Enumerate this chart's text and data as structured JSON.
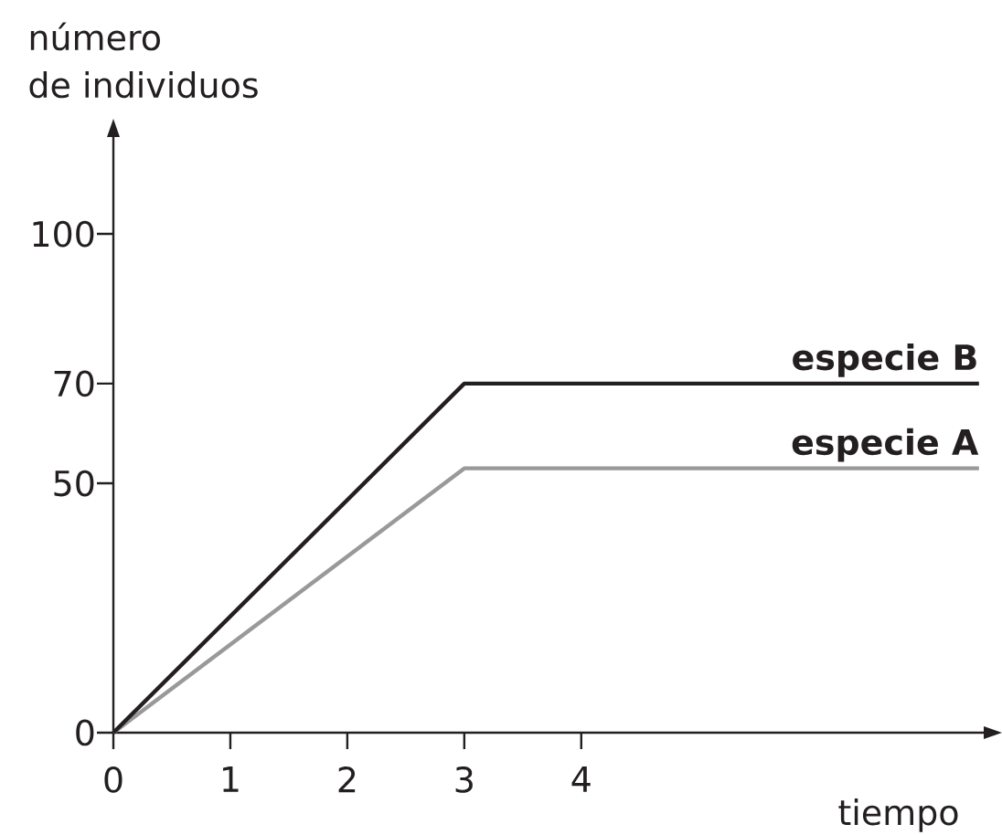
{
  "chart_data": {
    "type": "line",
    "xlabel": "tiempo",
    "ylabel": "número de individuos",
    "x": [
      0,
      3,
      7.4
    ],
    "series": [
      {
        "name": "especie A",
        "color": "#999999",
        "values": [
          0,
          53,
          53
        ]
      },
      {
        "name": "especie B",
        "color": "#231f20",
        "values": [
          0,
          70,
          70
        ]
      }
    ],
    "xlim": [
      0,
      7.55
    ],
    "ylim": [
      0,
      122
    ],
    "xticks": [
      0,
      1,
      2,
      3,
      4
    ],
    "yticks": [
      0,
      50,
      70,
      100
    ]
  }
}
